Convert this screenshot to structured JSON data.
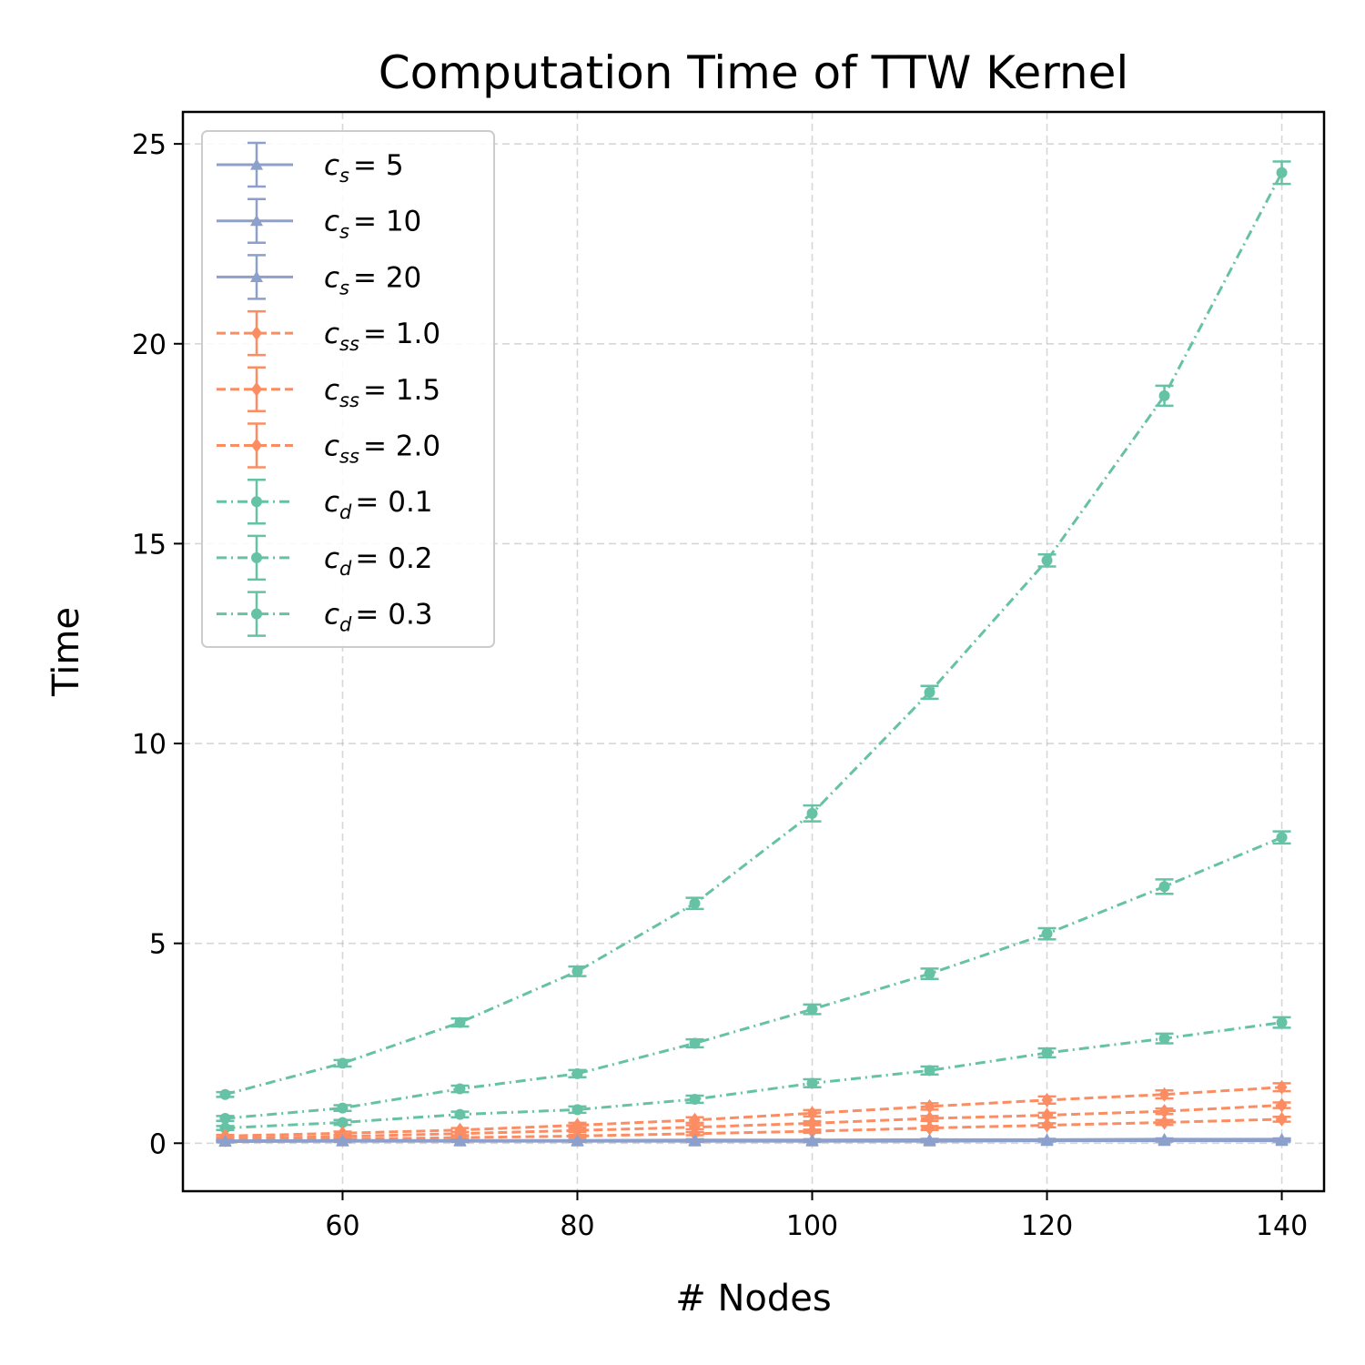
{
  "chart_data": {
    "type": "line",
    "title": "Computation Time of TTW Kernel",
    "xlabel": "# Nodes",
    "ylabel": "Time",
    "xlim": [
      46.4,
      143.6
    ],
    "ylim": [
      -1.2,
      25.8
    ],
    "x_ticks": [
      60,
      80,
      100,
      120,
      140
    ],
    "x_tick_labels": [
      "60",
      "80",
      "100",
      "120",
      "140"
    ],
    "y_ticks": [
      0,
      5,
      10,
      15,
      20,
      25
    ],
    "y_tick_labels": [
      "0",
      "5",
      "10",
      "15",
      "20",
      "25"
    ],
    "grid": true,
    "legend_position": "top-left",
    "x": [
      50,
      60,
      70,
      80,
      90,
      100,
      110,
      120,
      130,
      140
    ],
    "series": [
      {
        "name": "c_s = 5",
        "label_main": "c",
        "label_sub": "s",
        "label_value": "= 5",
        "color": "#8da0cb",
        "marker": "triangle",
        "linestyle": "solid",
        "values": [
          0.04,
          0.05,
          0.05,
          0.05,
          0.05,
          0.05,
          0.05,
          0.06,
          0.06,
          0.06
        ],
        "errors": [
          0.02,
          0.02,
          0.02,
          0.02,
          0.02,
          0.02,
          0.02,
          0.02,
          0.02,
          0.02
        ]
      },
      {
        "name": "c_s = 10",
        "label_main": "c",
        "label_sub": "s",
        "label_value": "= 10",
        "color": "#8da0cb",
        "marker": "triangle",
        "linestyle": "solid",
        "values": [
          0.05,
          0.06,
          0.06,
          0.06,
          0.06,
          0.07,
          0.07,
          0.07,
          0.08,
          0.08
        ],
        "errors": [
          0.02,
          0.02,
          0.02,
          0.02,
          0.02,
          0.02,
          0.02,
          0.02,
          0.02,
          0.02
        ]
      },
      {
        "name": "c_s = 20",
        "label_main": "c",
        "label_sub": "s",
        "label_value": "= 20",
        "color": "#8da0cb",
        "marker": "triangle",
        "linestyle": "solid",
        "values": [
          0.06,
          0.07,
          0.07,
          0.07,
          0.08,
          0.08,
          0.09,
          0.09,
          0.1,
          0.1
        ],
        "errors": [
          0.02,
          0.02,
          0.02,
          0.02,
          0.02,
          0.02,
          0.02,
          0.02,
          0.02,
          0.02
        ]
      },
      {
        "name": "c_ss = 1.0",
        "label_main": "c",
        "label_sub": "ss",
        "label_value": "= 1.0",
        "color": "#fc8d62",
        "marker": "diamond",
        "linestyle": "dashed",
        "values": [
          0.08,
          0.1,
          0.14,
          0.18,
          0.24,
          0.3,
          0.38,
          0.45,
          0.52,
          0.6
        ],
        "errors": [
          0.02,
          0.03,
          0.03,
          0.03,
          0.04,
          0.04,
          0.05,
          0.05,
          0.06,
          0.06
        ]
      },
      {
        "name": "c_ss = 1.5",
        "label_main": "c",
        "label_sub": "ss",
        "label_value": "= 1.5",
        "color": "#fc8d62",
        "marker": "diamond",
        "linestyle": "dashed",
        "values": [
          0.12,
          0.17,
          0.24,
          0.32,
          0.4,
          0.5,
          0.62,
          0.7,
          0.8,
          0.95
        ],
        "errors": [
          0.03,
          0.03,
          0.04,
          0.04,
          0.05,
          0.05,
          0.06,
          0.06,
          0.07,
          0.07
        ]
      },
      {
        "name": "c_ss = 2.0",
        "label_main": "c",
        "label_sub": "ss",
        "label_value": "= 2.0",
        "color": "#fc8d62",
        "marker": "diamond",
        "linestyle": "dashed",
        "values": [
          0.18,
          0.25,
          0.33,
          0.45,
          0.58,
          0.75,
          0.92,
          1.08,
          1.22,
          1.4
        ],
        "errors": [
          0.03,
          0.04,
          0.05,
          0.06,
          0.07,
          0.08,
          0.08,
          0.09,
          0.1,
          0.1
        ]
      },
      {
        "name": "c_d = 0.1",
        "label_main": "c",
        "label_sub": "d",
        "label_value": "= 0.1",
        "color": "#66c2a5",
        "marker": "circle",
        "linestyle": "dashdot",
        "values": [
          0.38,
          0.52,
          0.72,
          0.84,
          1.1,
          1.5,
          1.82,
          2.26,
          2.62,
          3.02
        ],
        "errors": [
          0.05,
          0.06,
          0.07,
          0.08,
          0.09,
          0.1,
          0.1,
          0.11,
          0.12,
          0.13
        ]
      },
      {
        "name": "c_d = 0.2",
        "label_main": "c",
        "label_sub": "d",
        "label_value": "= 0.2",
        "color": "#66c2a5",
        "marker": "circle",
        "linestyle": "dashdot",
        "values": [
          0.62,
          0.88,
          1.36,
          1.74,
          2.5,
          3.35,
          4.24,
          5.24,
          6.42,
          7.65
        ],
        "errors": [
          0.06,
          0.07,
          0.08,
          0.09,
          0.1,
          0.12,
          0.13,
          0.14,
          0.18,
          0.15
        ]
      },
      {
        "name": "c_d = 0.3",
        "label_main": "c",
        "label_sub": "d",
        "label_value": "= 0.3",
        "color": "#66c2a5",
        "marker": "circle",
        "linestyle": "dashdot",
        "values": [
          1.22,
          2.0,
          3.02,
          4.3,
          6.0,
          8.25,
          11.28,
          14.58,
          18.7,
          24.28
        ],
        "errors": [
          0.06,
          0.08,
          0.1,
          0.12,
          0.14,
          0.2,
          0.16,
          0.15,
          0.25,
          0.28
        ]
      }
    ]
  }
}
